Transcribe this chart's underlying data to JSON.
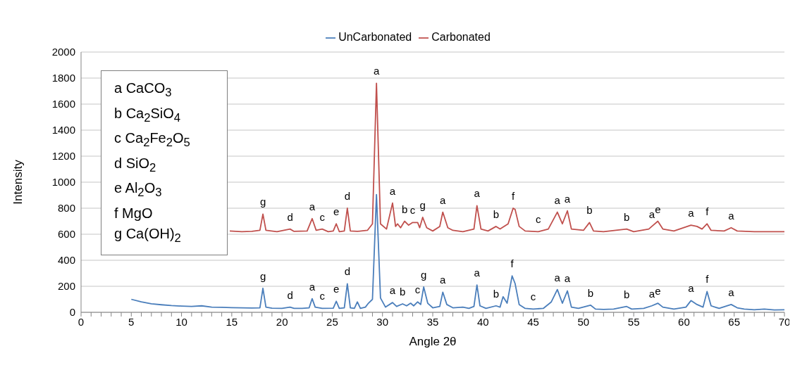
{
  "chart_data": {
    "type": "line",
    "xlabel": "Angle 2θ",
    "ylabel": "Intensity",
    "legend": "top",
    "grid": "y",
    "xlim": [
      0,
      70
    ],
    "ylim": [
      0,
      2000
    ],
    "yticks": [
      0,
      200,
      400,
      600,
      800,
      1000,
      1200,
      1400,
      1600,
      1800,
      2000
    ],
    "xticks": [
      0,
      {
        "value": 1,
        "label": null
      },
      {
        "value": 2,
        "label": null
      },
      {
        "value": 3,
        "label": null
      },
      {
        "value": 4,
        "label": null
      },
      5,
      {
        "value": 6,
        "label": null
      },
      {
        "value": 7,
        "label": null
      },
      {
        "value": 8,
        "label": null
      },
      {
        "value": 9,
        "label": null
      },
      10,
      {
        "value": 11,
        "label": null
      },
      {
        "value": 12,
        "label": null
      },
      {
        "value": 13,
        "label": null
      },
      {
        "value": 14,
        "label": null
      },
      15,
      {
        "value": 16,
        "label": null
      },
      {
        "value": 17,
        "label": null
      },
      {
        "value": 18,
        "label": null
      },
      {
        "value": 19,
        "label": null
      },
      20,
      {
        "value": 21,
        "label": null
      },
      {
        "value": 22,
        "label": null
      },
      {
        "value": 23,
        "label": null
      },
      {
        "value": 24,
        "label": null
      },
      25,
      {
        "value": 26,
        "label": null
      },
      {
        "value": 27,
        "label": null
      },
      {
        "value": 28,
        "label": null
      },
      {
        "value": 29,
        "label": null
      },
      30,
      {
        "value": 31,
        "label": null
      },
      {
        "value": 32,
        "label": null
      },
      {
        "value": 33,
        "label": null
      },
      {
        "value": 34,
        "label": null
      },
      35,
      {
        "value": 36,
        "label": null
      },
      {
        "value": 37,
        "label": null
      },
      {
        "value": 38,
        "label": null
      },
      {
        "value": 39,
        "label": null
      },
      40,
      {
        "value": 41,
        "label": null
      },
      {
        "value": 42,
        "label": null
      },
      {
        "value": 43,
        "label": null
      },
      {
        "value": 44,
        "label": null
      },
      45,
      {
        "value": 46,
        "label": null
      },
      {
        "value": 47,
        "label": null
      },
      {
        "value": 48,
        "label": null
      },
      {
        "value": 49,
        "label": null
      },
      50,
      {
        "value": 51,
        "label": null
      },
      {
        "value": 52,
        "label": null
      },
      {
        "value": 53,
        "label": null
      },
      {
        "value": 54,
        "label": null
      },
      55,
      {
        "value": 56,
        "label": null
      },
      {
        "value": 57,
        "label": null
      },
      {
        "value": 58,
        "label": null
      },
      {
        "value": 59,
        "label": null
      },
      60,
      {
        "value": 61,
        "label": null
      },
      {
        "value": 62,
        "label": null
      },
      {
        "value": 63,
        "label": null
      },
      {
        "value": 64,
        "label": null
      },
      65,
      {
        "value": 66,
        "label": null
      },
      {
        "value": 67,
        "label": null
      },
      {
        "value": 68,
        "label": null
      },
      {
        "value": 69,
        "label": null
      },
      70
    ],
    "series": [
      {
        "name": "UnCarbonated",
        "color": "#4a7ebb",
        "x": [
          5,
          6,
          7,
          8,
          9,
          10,
          11,
          12,
          13,
          14,
          15,
          16,
          17,
          17.8,
          18.1,
          18.4,
          19,
          20,
          20.8,
          21.2,
          22,
          22.7,
          23.0,
          23.3,
          24,
          25.1,
          25.4,
          25.7,
          26.2,
          26.5,
          26.8,
          27.2,
          27.5,
          27.8,
          28.3,
          28.6,
          29.0,
          29.4,
          29.8,
          30.3,
          31.0,
          31.4,
          32.0,
          32.4,
          32.8,
          33.1,
          33.5,
          33.8,
          34.1,
          34.5,
          35,
          35.7,
          36.0,
          36.4,
          37,
          38,
          38.6,
          39.1,
          39.4,
          39.7,
          40.3,
          41.3,
          41.7,
          42.0,
          42.4,
          42.9,
          43.2,
          43.6,
          44.2,
          45,
          46,
          46.8,
          47.4,
          47.9,
          48.4,
          48.8,
          49.5,
          50.7,
          51.2,
          52,
          53,
          54.3,
          54.8,
          56,
          56.8,
          57.4,
          57.9,
          59,
          60.2,
          60.7,
          61.3,
          61.9,
          62.3,
          62.7,
          63.5,
          64.7,
          65.3,
          66,
          67,
          68,
          69,
          70
        ],
        "values": [
          100,
          80,
          65,
          58,
          52,
          48,
          45,
          50,
          40,
          38,
          36,
          34,
          33,
          35,
          185,
          40,
          32,
          30,
          40,
          30,
          30,
          35,
          105,
          40,
          30,
          32,
          85,
          30,
          35,
          220,
          35,
          30,
          80,
          30,
          40,
          70,
          100,
          905,
          110,
          40,
          75,
          45,
          65,
          50,
          70,
          50,
          80,
          60,
          195,
          70,
          35,
          45,
          155,
          60,
          35,
          40,
          30,
          45,
          210,
          50,
          30,
          50,
          40,
          120,
          70,
          280,
          220,
          60,
          30,
          25,
          30,
          80,
          175,
          70,
          165,
          40,
          30,
          55,
          25,
          22,
          25,
          45,
          25,
          30,
          50,
          70,
          40,
          25,
          40,
          90,
          60,
          40,
          160,
          50,
          30,
          60,
          35,
          25,
          20,
          25,
          18,
          20
        ]
      },
      {
        "name": "Carbonated",
        "color": "#c0504d",
        "x": [
          14.8,
          16,
          17,
          17.8,
          18.1,
          18.4,
          19.5,
          20.8,
          21.2,
          22.5,
          23.0,
          23.4,
          24.0,
          24.6,
          25.1,
          25.4,
          25.7,
          26.2,
          26.5,
          26.8,
          27.5,
          28.5,
          29.0,
          29.4,
          29.8,
          30.4,
          31.0,
          31.3,
          31.5,
          31.8,
          32.2,
          32.6,
          33.0,
          33.5,
          33.7,
          34.0,
          34.4,
          35,
          35.7,
          36.0,
          36.5,
          37,
          38,
          39.1,
          39.4,
          39.8,
          40.5,
          41.3,
          41.7,
          42.5,
          43.0,
          43.2,
          43.6,
          44.2,
          45.5,
          46.5,
          47.4,
          47.9,
          48.4,
          48.8,
          50,
          50.6,
          51,
          52,
          54.3,
          55,
          56.5,
          56.8,
          57.4,
          57.9,
          59,
          60.7,
          61.3,
          61.8,
          62.3,
          62.7,
          64,
          64.7,
          65.3,
          67,
          70
        ],
        "values": [
          625,
          620,
          622,
          630,
          755,
          630,
          620,
          640,
          622,
          625,
          720,
          630,
          640,
          620,
          625,
          680,
          620,
          625,
          800,
          625,
          622,
          630,
          680,
          1760,
          680,
          640,
          840,
          660,
          680,
          650,
          700,
          670,
          690,
          690,
          650,
          730,
          650,
          625,
          660,
          770,
          650,
          630,
          620,
          640,
          820,
          640,
          625,
          660,
          640,
          680,
          800,
          790,
          660,
          625,
          620,
          640,
          770,
          680,
          780,
          640,
          630,
          690,
          625,
          620,
          640,
          620,
          640,
          660,
          700,
          640,
          625,
          670,
          660,
          640,
          680,
          630,
          625,
          650,
          625,
          620,
          620
        ]
      }
    ],
    "annotations": [
      "a CaCO$_{3}$",
      "b Ca$_{2}$SiO$_{4}$",
      "c Ca$_{2}$Fe$_{2}$O$_{5}$",
      "d SiO$_{2}$",
      "e Al$_{2}$O$_{3}$",
      "f MgO",
      "g Ca(OH)$_{2}$",
      {
        "text": "g",
        "x": 18.1,
        "y": 755
      },
      {
        "text": "d",
        "x": 20.8,
        "y": 640
      },
      {
        "text": "a",
        "x": 23.0,
        "y": 720
      },
      {
        "text": "c",
        "x": 24.0,
        "y": 640
      },
      {
        "text": "e",
        "x": 25.4,
        "y": 680
      },
      {
        "text": "d",
        "x": 26.5,
        "y": 800
      },
      {
        "text": "a",
        "x": 29.4,
        "y": 1760
      },
      {
        "text": "a",
        "x": 31.0,
        "y": 840
      },
      {
        "text": "b",
        "x": 32.2,
        "y": 700
      },
      {
        "text": "c",
        "x": 33.0,
        "y": 690
      },
      {
        "text": "g",
        "x": 34.0,
        "y": 730
      },
      {
        "text": "a",
        "x": 36.0,
        "y": 770
      },
      {
        "text": "a",
        "x": 39.4,
        "y": 820
      },
      {
        "text": "b",
        "x": 41.3,
        "y": 660
      },
      {
        "text": "f",
        "x": 43.0,
        "y": 800
      },
      {
        "text": "c",
        "x": 45.5,
        "y": 620
      },
      {
        "text": "a",
        "x": 47.4,
        "y": 770
      },
      {
        "text": "a",
        "x": 48.4,
        "y": 780
      },
      {
        "text": "b",
        "x": 50.6,
        "y": 690
      },
      {
        "text": "b",
        "x": 54.3,
        "y": 640
      },
      {
        "text": "a",
        "x": 56.8,
        "y": 660
      },
      {
        "text": "e",
        "x": 57.4,
        "y": 700
      },
      {
        "text": "a",
        "x": 60.7,
        "y": 670
      },
      {
        "text": "f",
        "x": 62.3,
        "y": 680
      },
      {
        "text": "a",
        "x": 64.7,
        "y": 650
      },
      {
        "text": "g",
        "x": 18.1,
        "y": 185
      },
      {
        "text": "d",
        "x": 20.8,
        "y": 40
      },
      {
        "text": "a",
        "x": 23.0,
        "y": 105
      },
      {
        "text": "c",
        "x": 24,
        "y": 30
      },
      {
        "text": "e",
        "x": 25.4,
        "y": 85
      },
      {
        "text": "d",
        "x": 26.5,
        "y": 220
      },
      {
        "text": "a",
        "x": 31.0,
        "y": 75
      },
      {
        "text": "b",
        "x": 32.0,
        "y": 65
      },
      {
        "text": "c",
        "x": 33.5,
        "y": 80
      },
      {
        "text": "g",
        "x": 34.1,
        "y": 195
      },
      {
        "text": "a",
        "x": 36.0,
        "y": 155
      },
      {
        "text": "a",
        "x": 39.4,
        "y": 210
      },
      {
        "text": "b",
        "x": 41.3,
        "y": 50
      },
      {
        "text": "f",
        "x": 42.9,
        "y": 280
      },
      {
        "text": "c",
        "x": 45,
        "y": 25
      },
      {
        "text": "a",
        "x": 47.4,
        "y": 175
      },
      {
        "text": "a",
        "x": 48.4,
        "y": 165
      },
      {
        "text": "b",
        "x": 50.7,
        "y": 55
      },
      {
        "text": "b",
        "x": 54.3,
        "y": 45
      },
      {
        "text": "a",
        "x": 56.8,
        "y": 50
      },
      {
        "text": "e",
        "x": 57.4,
        "y": 70
      },
      {
        "text": "a",
        "x": 60.7,
        "y": 90
      },
      {
        "text": "f",
        "x": 62.3,
        "y": 160
      },
      {
        "text": "a",
        "x": 64.7,
        "y": 60
      }
    ]
  }
}
